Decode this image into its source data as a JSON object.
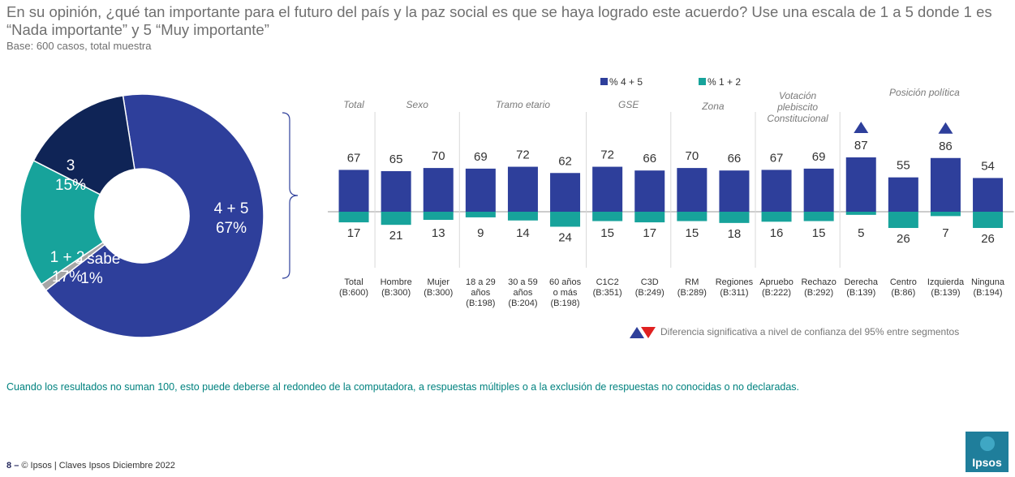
{
  "header": {
    "title": "En su opinión, ¿qué tan importante para el futuro del país y la paz social es que se haya logrado este acuerdo? Use una escala de 1 a 5 donde 1 es “Nada importante” y 5 “Muy importante”",
    "subtitle": "Base: 600 casos, total muestra"
  },
  "colors": {
    "top2": "#2e3f9b",
    "bottom2": "#17a39b",
    "mid": "#0f2456",
    "nosabe": "#a6a6a6"
  },
  "donut": {
    "slices": [
      {
        "label": "4 + 5",
        "value": 67,
        "pct": "67%",
        "color": "#2e3f9b"
      },
      {
        "label": "No sabe",
        "value": 1,
        "pct": "1%",
        "color": "#a6a6a6"
      },
      {
        "label": "1 + 2",
        "value": 17,
        "pct": "17%",
        "color": "#17a39b"
      },
      {
        "label": "3",
        "value": 15,
        "pct": "15%",
        "color": "#0f2456"
      }
    ]
  },
  "chart_data": {
    "type": "bar",
    "legend": [
      "% 4 + 5",
      "% 1 + 2"
    ],
    "groups": [
      {
        "label": "Total",
        "span": 1
      },
      {
        "label": "Sexo",
        "span": 2
      },
      {
        "label": "Tramo etario",
        "span": 3
      },
      {
        "label": "GSE",
        "span": 2
      },
      {
        "label": "Zona",
        "span": 2
      },
      {
        "label": "Votación plebiscito Constitucional",
        "span": 2
      },
      {
        "label": "Posición política",
        "span": 4
      }
    ],
    "categories": [
      [
        "Total",
        "(B:600)"
      ],
      [
        "Hombre",
        "(B:300)"
      ],
      [
        "Mujer",
        "(B:300)"
      ],
      [
        "18 a 29",
        "años",
        "(B:198)"
      ],
      [
        "30 a 59",
        "años",
        "(B:204)"
      ],
      [
        "60 años",
        "o más",
        "(B:198)"
      ],
      [
        "C1C2",
        "(B:351)"
      ],
      [
        "C3D",
        "(B:249)"
      ],
      [
        "RM",
        "(B:289)"
      ],
      [
        "Regiones",
        "(B:311)"
      ],
      [
        "Apruebo",
        "(B:222)"
      ],
      [
        "Rechazo",
        "(B:292)"
      ],
      [
        "Derecha",
        "(B:139)"
      ],
      [
        "Centro",
        "(B:86)"
      ],
      [
        "Izquierda",
        "(B:139)"
      ],
      [
        "Ninguna",
        "(B:194)"
      ]
    ],
    "series": [
      {
        "name": "% 4 + 5",
        "values": [
          67,
          65,
          70,
          69,
          72,
          62,
          72,
          66,
          70,
          66,
          67,
          69,
          87,
          55,
          86,
          54
        ]
      },
      {
        "name": "% 1 + 2",
        "values": [
          17,
          21,
          13,
          9,
          14,
          24,
          15,
          17,
          15,
          18,
          16,
          15,
          5,
          26,
          7,
          26
        ]
      }
    ],
    "significant_up": [
      12,
      14
    ]
  },
  "significance_note": "Diferencia significativa a nivel de confianza del 95% entre segmentos",
  "footnote": "Cuando los resultados no suman 100, esto puede deberse al redondeo de la computadora, a respuestas múltiples o a la exclusión de respuestas no conocidas o no declaradas.",
  "footer": {
    "page": "8",
    "dash": "–",
    "text": "© Ipsos | Claves Ipsos Diciembre 2022"
  },
  "logo": {
    "text": "Ipsos"
  }
}
